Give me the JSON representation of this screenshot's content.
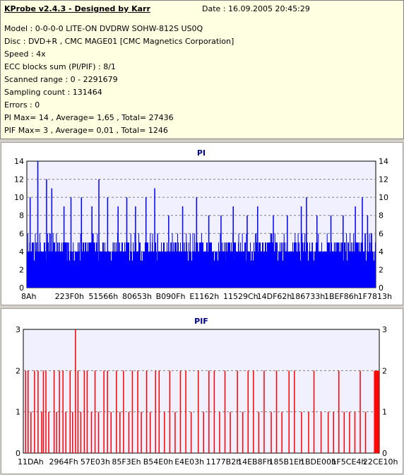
{
  "header": {
    "app_title": "KProbe v2.4.3 - Designed by Karr",
    "date": "Date : 16.09.2005 20:45:29"
  },
  "info_lines": [
    "Model : 0-0-0-0 LITE-ON DVDRW SOHW-812S  US0Q",
    "Disc : DVD+R , CMC MAGE01 [CMC Magnetics Corporation]",
    "Speed : 4x",
    "ECC blocks sum (PI/PIF) : 8/1",
    "Scanned range : 0 - 2291679",
    "Sampling count : 131464",
    "Errors : 0",
    "PI Max= 14 , Average= 1,65 , Total= 27436",
    "PIF Max= 3 , Average= 0,01 , Total= 1246"
  ],
  "colors": {
    "pi_bar": "#0000ff",
    "pif_bar": "#ff0000",
    "plot_bg": "#f0f0ff",
    "title": "#000080"
  },
  "chart_data": [
    {
      "type": "bar",
      "title": "PI",
      "ylim": [
        0,
        14
      ],
      "yticks": [
        0,
        2,
        4,
        6,
        8,
        10,
        12,
        14
      ],
      "xlabels": [
        "8Ah",
        "223F0h",
        "51566h",
        "80653h",
        "B090Fh",
        "E1162h",
        "11529Ch",
        "14DF62h",
        "186733h",
        "1BEF86h",
        "1F7813h"
      ],
      "grid": true,
      "baseline": 4,
      "baseline_note": "dense bars mostly between 3 and 5",
      "peaks": [
        {
          "x_frac": 0.008,
          "value": 10
        },
        {
          "x_frac": 0.03,
          "value": 14
        },
        {
          "x_frac": 0.055,
          "value": 12
        },
        {
          "x_frac": 0.07,
          "value": 11
        },
        {
          "x_frac": 0.105,
          "value": 9
        },
        {
          "x_frac": 0.125,
          "value": 10
        },
        {
          "x_frac": 0.155,
          "value": 10
        },
        {
          "x_frac": 0.185,
          "value": 9
        },
        {
          "x_frac": 0.205,
          "value": 12
        },
        {
          "x_frac": 0.23,
          "value": 10
        },
        {
          "x_frac": 0.26,
          "value": 9
        },
        {
          "x_frac": 0.285,
          "value": 10
        },
        {
          "x_frac": 0.31,
          "value": 9
        },
        {
          "x_frac": 0.34,
          "value": 10
        },
        {
          "x_frac": 0.365,
          "value": 11
        },
        {
          "x_frac": 0.405,
          "value": 8
        },
        {
          "x_frac": 0.445,
          "value": 9
        },
        {
          "x_frac": 0.485,
          "value": 10
        },
        {
          "x_frac": 0.52,
          "value": 8
        },
        {
          "x_frac": 0.555,
          "value": 8
        },
        {
          "x_frac": 0.59,
          "value": 9
        },
        {
          "x_frac": 0.63,
          "value": 8
        },
        {
          "x_frac": 0.66,
          "value": 9
        },
        {
          "x_frac": 0.705,
          "value": 8
        },
        {
          "x_frac": 0.745,
          "value": 8
        },
        {
          "x_frac": 0.785,
          "value": 9
        },
        {
          "x_frac": 0.8,
          "value": 10
        },
        {
          "x_frac": 0.83,
          "value": 8
        },
        {
          "x_frac": 0.87,
          "value": 8
        },
        {
          "x_frac": 0.905,
          "value": 8
        },
        {
          "x_frac": 0.94,
          "value": 9
        },
        {
          "x_frac": 0.96,
          "value": 10
        },
        {
          "x_frac": 0.975,
          "value": 8
        }
      ]
    },
    {
      "type": "bar",
      "title": "PIF",
      "ylim": [
        0,
        3
      ],
      "yticks": [
        0,
        1,
        2,
        3
      ],
      "xlabels": [
        "11DAh",
        "2964Fh",
        "57E03h",
        "85F3Eh",
        "B54E0h",
        "E4E03h",
        "1177B2h",
        "14EB8Fh",
        "185B1Eh",
        "1BDE00h",
        "1F5CE4h",
        "22CE10h"
      ],
      "grid": true,
      "bars": [
        {
          "x_frac": 0.005,
          "value": 2
        },
        {
          "x_frac": 0.012,
          "value": 2
        },
        {
          "x_frac": 0.02,
          "value": 1
        },
        {
          "x_frac": 0.03,
          "value": 2
        },
        {
          "x_frac": 0.04,
          "value": 2
        },
        {
          "x_frac": 0.05,
          "value": 1
        },
        {
          "x_frac": 0.055,
          "value": 2
        },
        {
          "x_frac": 0.062,
          "value": 2
        },
        {
          "x_frac": 0.07,
          "value": 1
        },
        {
          "x_frac": 0.085,
          "value": 2
        },
        {
          "x_frac": 0.092,
          "value": 1
        },
        {
          "x_frac": 0.1,
          "value": 2
        },
        {
          "x_frac": 0.11,
          "value": 2
        },
        {
          "x_frac": 0.118,
          "value": 1
        },
        {
          "x_frac": 0.13,
          "value": 2
        },
        {
          "x_frac": 0.137,
          "value": 1
        },
        {
          "x_frac": 0.145,
          "value": 3
        },
        {
          "x_frac": 0.152,
          "value": 2
        },
        {
          "x_frac": 0.16,
          "value": 1
        },
        {
          "x_frac": 0.17,
          "value": 2
        },
        {
          "x_frac": 0.178,
          "value": 2
        },
        {
          "x_frac": 0.19,
          "value": 1
        },
        {
          "x_frac": 0.2,
          "value": 2
        },
        {
          "x_frac": 0.21,
          "value": 1
        },
        {
          "x_frac": 0.225,
          "value": 2
        },
        {
          "x_frac": 0.235,
          "value": 2
        },
        {
          "x_frac": 0.245,
          "value": 1
        },
        {
          "x_frac": 0.26,
          "value": 2
        },
        {
          "x_frac": 0.27,
          "value": 1
        },
        {
          "x_frac": 0.28,
          "value": 2
        },
        {
          "x_frac": 0.295,
          "value": 1
        },
        {
          "x_frac": 0.305,
          "value": 2
        },
        {
          "x_frac": 0.32,
          "value": 2
        },
        {
          "x_frac": 0.33,
          "value": 1
        },
        {
          "x_frac": 0.345,
          "value": 2
        },
        {
          "x_frac": 0.355,
          "value": 1
        },
        {
          "x_frac": 0.37,
          "value": 2
        },
        {
          "x_frac": 0.38,
          "value": 2
        },
        {
          "x_frac": 0.395,
          "value": 1
        },
        {
          "x_frac": 0.41,
          "value": 2
        },
        {
          "x_frac": 0.425,
          "value": 1
        },
        {
          "x_frac": 0.44,
          "value": 2
        },
        {
          "x_frac": 0.455,
          "value": 2
        },
        {
          "x_frac": 0.47,
          "value": 1
        },
        {
          "x_frac": 0.49,
          "value": 2
        },
        {
          "x_frac": 0.505,
          "value": 1
        },
        {
          "x_frac": 0.52,
          "value": 2
        },
        {
          "x_frac": 0.535,
          "value": 2
        },
        {
          "x_frac": 0.55,
          "value": 1
        },
        {
          "x_frac": 0.565,
          "value": 2
        },
        {
          "x_frac": 0.58,
          "value": 1
        },
        {
          "x_frac": 0.6,
          "value": 2
        },
        {
          "x_frac": 0.615,
          "value": 1
        },
        {
          "x_frac": 0.63,
          "value": 2
        },
        {
          "x_frac": 0.645,
          "value": 2
        },
        {
          "x_frac": 0.66,
          "value": 1
        },
        {
          "x_frac": 0.675,
          "value": 2
        },
        {
          "x_frac": 0.695,
          "value": 1
        },
        {
          "x_frac": 0.71,
          "value": 2
        },
        {
          "x_frac": 0.725,
          "value": 1
        },
        {
          "x_frac": 0.745,
          "value": 2
        },
        {
          "x_frac": 0.76,
          "value": 2
        },
        {
          "x_frac": 0.78,
          "value": 1
        },
        {
          "x_frac": 0.8,
          "value": 1
        },
        {
          "x_frac": 0.815,
          "value": 2
        },
        {
          "x_frac": 0.835,
          "value": 1
        },
        {
          "x_frac": 0.855,
          "value": 1
        },
        {
          "x_frac": 0.87,
          "value": 1
        },
        {
          "x_frac": 0.885,
          "value": 2
        },
        {
          "x_frac": 0.9,
          "value": 1
        },
        {
          "x_frac": 0.915,
          "value": 1
        },
        {
          "x_frac": 0.93,
          "value": 1
        },
        {
          "x_frac": 0.945,
          "value": 2
        },
        {
          "x_frac": 0.96,
          "value": 1
        },
        {
          "x_frac": 0.985,
          "value": 2
        },
        {
          "x_frac": 0.988,
          "value": 2
        },
        {
          "x_frac": 0.991,
          "value": 2
        },
        {
          "x_frac": 0.994,
          "value": 2
        },
        {
          "x_frac": 0.997,
          "value": 2
        }
      ]
    }
  ]
}
